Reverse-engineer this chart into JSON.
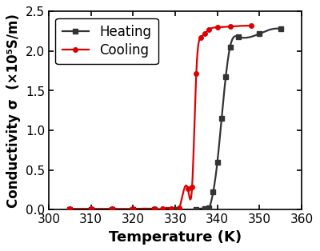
{
  "heating_T": [
    305,
    310,
    315,
    320,
    325,
    330,
    335,
    337,
    338,
    339,
    340,
    341,
    342,
    343,
    345,
    350,
    355
  ],
  "heating_sigma": [
    0.0,
    0.0,
    0.0,
    0.0,
    0.0,
    0.0,
    0.0,
    0.01,
    0.02,
    0.22,
    0.6,
    1.15,
    1.68,
    2.05,
    2.18,
    2.22,
    2.28
  ],
  "cooling_T": [
    305,
    310,
    315,
    320,
    325,
    327,
    329,
    331,
    333,
    334,
    335,
    336,
    337,
    338,
    340,
    343,
    348
  ],
  "cooling_sigma": [
    0.01,
    0.01,
    0.01,
    0.01,
    0.01,
    0.01,
    0.01,
    0.02,
    0.26,
    0.28,
    1.72,
    2.17,
    2.22,
    2.27,
    2.3,
    2.31,
    2.32
  ],
  "heating_color": "#333333",
  "cooling_color": "#dd0000",
  "heating_marker": "s",
  "cooling_marker": "o",
  "marker_size": 4,
  "line_width": 1.6,
  "xlabel": "Temperature (K)",
  "ylabel": "Conductivity σ  (×10⁵S/m)",
  "xlim": [
    300,
    360
  ],
  "ylim": [
    0,
    2.5
  ],
  "xticks": [
    300,
    310,
    320,
    330,
    340,
    350,
    360
  ],
  "yticks": [
    0.0,
    0.5,
    1.0,
    1.5,
    2.0,
    2.5
  ],
  "legend_heating": "Heating",
  "legend_cooling": "Cooling",
  "label_fontsize": 13,
  "tick_fontsize": 11,
  "legend_fontsize": 12
}
